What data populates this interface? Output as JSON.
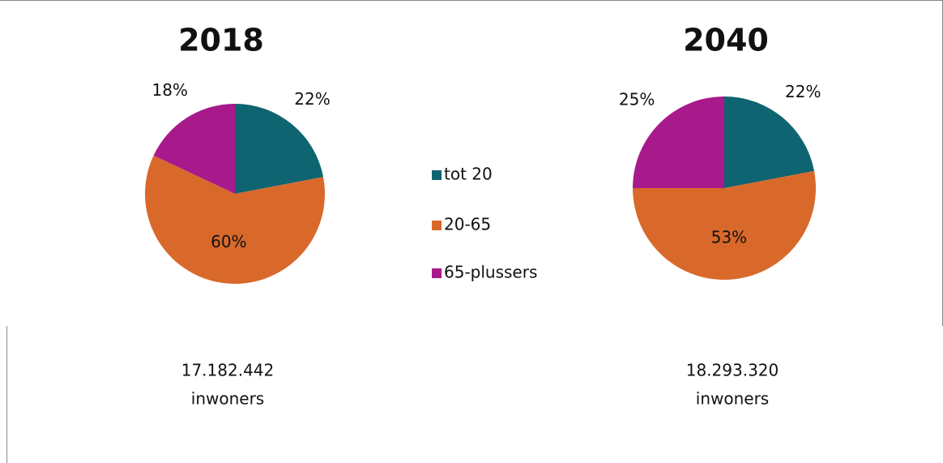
{
  "chart_data": [
    {
      "type": "pie",
      "title": "2018",
      "values": [
        22,
        60,
        18
      ],
      "value_labels": [
        "22%",
        "60%",
        "18%"
      ],
      "annotations": [
        "17.182.442",
        "inwoners"
      ]
    },
    {
      "type": "pie",
      "title": "2040",
      "values": [
        22,
        53,
        25
      ],
      "value_labels": [
        "22%",
        "53%",
        "25%"
      ],
      "annotations": [
        "18.293.320",
        "inwoners"
      ]
    }
  ],
  "legend": {
    "categories": [
      "tot 20",
      "20-65",
      "65-plussers"
    ],
    "colors": [
      "#0e6470",
      "#d9692b",
      "#a81a8c"
    ]
  }
}
